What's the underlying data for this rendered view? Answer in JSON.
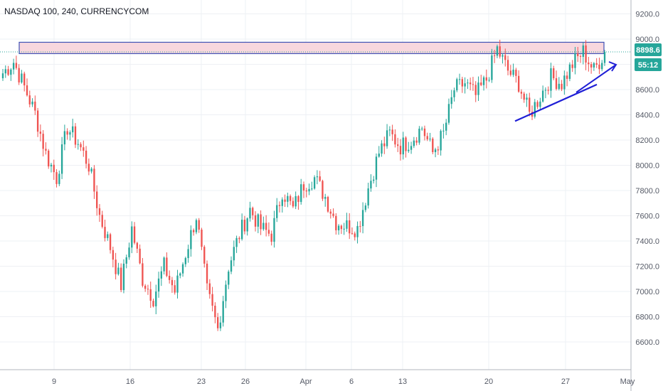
{
  "chart_data": {
    "type": "candlestick",
    "title": "NASDAQ 100, 240, CURRENCYCOM",
    "y_ticks": [
      6600,
      6800,
      7000,
      7200,
      7400,
      7600,
      7800,
      8000,
      8200,
      8400,
      8600,
      8800,
      9000,
      9200
    ],
    "y_tick_labels": [
      "6600.0",
      "6800.0",
      "7000.0",
      "7200.0",
      "7400.0",
      "7600.0",
      "7800.0",
      "8000.0",
      "8200.0",
      "8400.0",
      "8600.0",
      "8800.0",
      "9000.0",
      "9200.0"
    ],
    "x_tick_labels": [
      "9",
      "16",
      "23",
      "26",
      "Apr",
      "6",
      "13",
      "20",
      "27",
      "May"
    ],
    "ylim": [
      6380,
      9310
    ],
    "last_price": "8898.6",
    "countdown": "55:12",
    "colors": {
      "up": "#26a69a",
      "down": "#ef5350",
      "line": "#1f1fd6",
      "zone_fill": "#f8d7de",
      "zone_border": "#3f51b5",
      "price_badge": "#26a69a",
      "timer_badge": "#26a69a",
      "grid": "#eef0f4"
    },
    "resistance_zone": {
      "top": 8975,
      "bottom": 8885
    },
    "trendline": {
      "from": [
        "Apr 22",
        8350
      ],
      "to": [
        "Apr 29",
        8640
      ]
    },
    "series": [
      {
        "date": "Mar 5",
        "value": 8730
      },
      {
        "date": "Mar 6",
        "value": 8820
      },
      {
        "date": "Mar 7",
        "value": 8620
      },
      {
        "date": "Mar 8",
        "value": 8410
      },
      {
        "date": "Mar 9",
        "value": 8090
      },
      {
        "date": "Mar 10",
        "value": 7900
      },
      {
        "date": "Mar 11",
        "value": 8300
      },
      {
        "date": "Mar 12",
        "value": 8180
      },
      {
        "date": "Mar 13",
        "value": 8000
      },
      {
        "date": "Mar 14",
        "value": 7600
      },
      {
        "date": "Mar 15",
        "value": 7350
      },
      {
        "date": "Mar 16",
        "value": 7050
      },
      {
        "date": "Mar 17",
        "value": 7500
      },
      {
        "date": "Mar 18",
        "value": 7100
      },
      {
        "date": "Mar 19",
        "value": 6950
      },
      {
        "date": "Mar 20",
        "value": 7200
      },
      {
        "date": "Mar 21",
        "value": 7000
      },
      {
        "date": "Mar 22",
        "value": 7300
      },
      {
        "date": "Mar 23",
        "value": 7600
      },
      {
        "date": "Mar 24",
        "value": 7000
      },
      {
        "date": "Mar 25",
        "value": 6700
      },
      {
        "date": "Mar 26",
        "value": 7200
      },
      {
        "date": "Mar 27",
        "value": 7450
      },
      {
        "date": "Mar 28",
        "value": 7650
      },
      {
        "date": "Mar 29",
        "value": 7500
      },
      {
        "date": "Mar 30",
        "value": 7450
      },
      {
        "date": "Mar 31",
        "value": 7800
      },
      {
        "date": "Apr 1",
        "value": 7650
      },
      {
        "date": "Apr 2",
        "value": 7850
      },
      {
        "date": "Apr 3",
        "value": 7900
      },
      {
        "date": "Apr 4",
        "value": 7750
      },
      {
        "date": "Apr 5",
        "value": 7550
      },
      {
        "date": "Apr 6",
        "value": 7520
      },
      {
        "date": "Apr 7",
        "value": 7500
      },
      {
        "date": "Apr 8",
        "value": 7820
      },
      {
        "date": "Apr 9",
        "value": 8100
      },
      {
        "date": "Apr 10",
        "value": 8250
      },
      {
        "date": "Apr 11",
        "value": 8150
      },
      {
        "date": "Apr 12",
        "value": 8200
      },
      {
        "date": "Apr 13",
        "value": 8300
      },
      {
        "date": "Apr 14",
        "value": 8100
      },
      {
        "date": "Apr 15",
        "value": 8250
      },
      {
        "date": "Apr 16",
        "value": 8600
      },
      {
        "date": "Apr 17",
        "value": 8650
      },
      {
        "date": "Apr 18",
        "value": 8550
      },
      {
        "date": "Apr 19",
        "value": 8680
      },
      {
        "date": "Apr 20",
        "value": 8920
      },
      {
        "date": "Apr 21",
        "value": 8750
      },
      {
        "date": "Apr 22",
        "value": 8650
      },
      {
        "date": "Apr 23",
        "value": 8400
      },
      {
        "date": "Apr 24",
        "value": 8550
      },
      {
        "date": "Apr 25",
        "value": 8700
      },
      {
        "date": "Apr 26",
        "value": 8650
      },
      {
        "date": "Apr 27",
        "value": 8800
      },
      {
        "date": "Apr 28",
        "value": 8900
      },
      {
        "date": "Apr 29",
        "value": 8750
      },
      {
        "date": "Apr 30",
        "value": 8898.6
      }
    ]
  }
}
